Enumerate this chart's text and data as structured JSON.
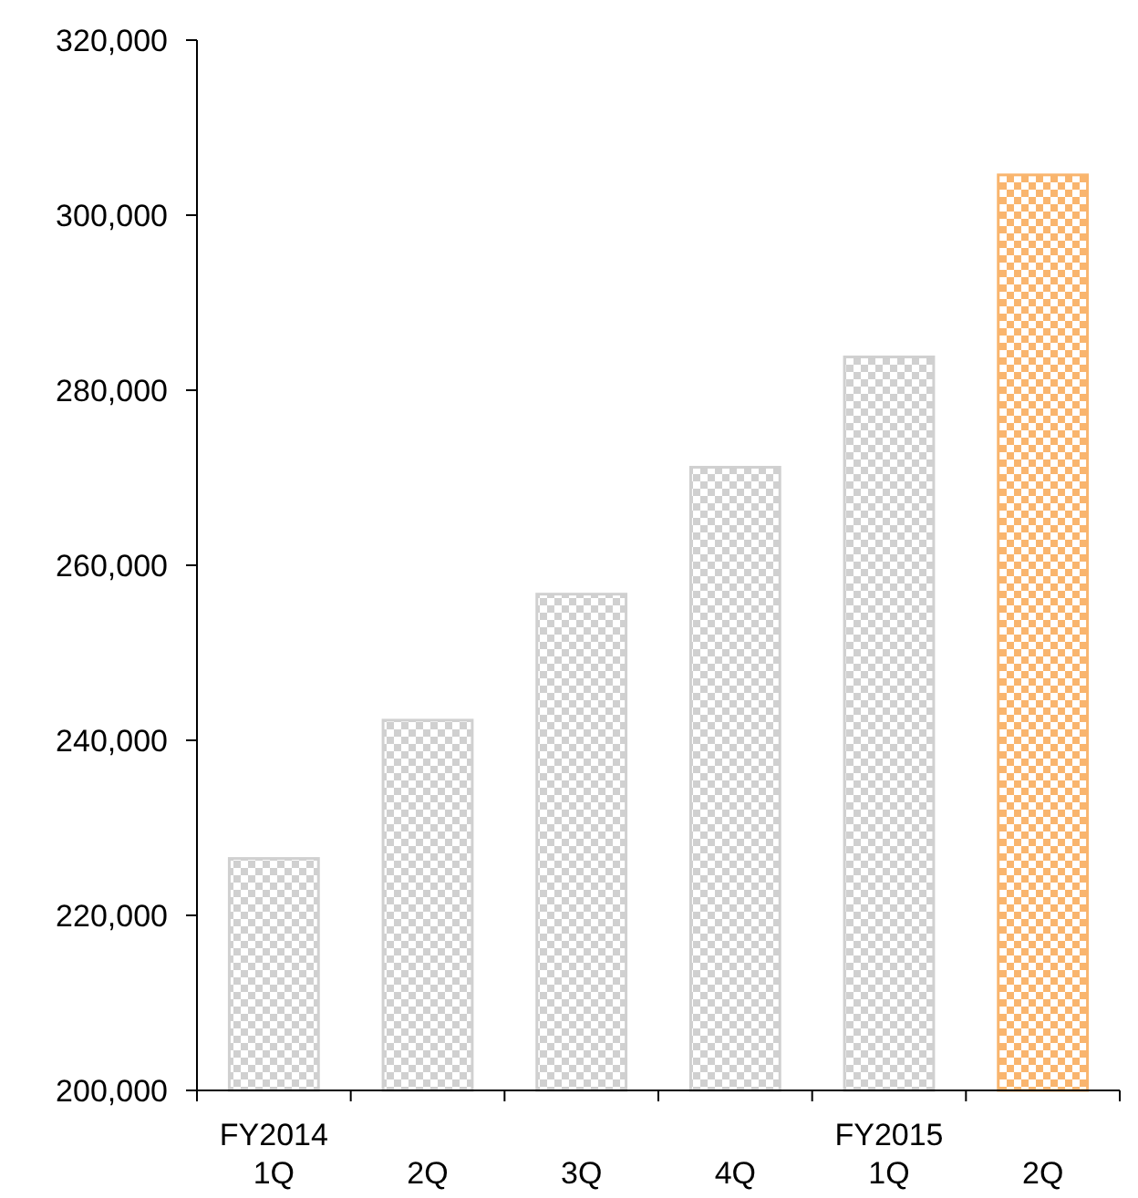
{
  "chart_data": {
    "type": "bar",
    "categories": [
      "FY2014\n1Q",
      "2Q",
      "3Q",
      "4Q",
      "FY2015\n1Q",
      "2Q"
    ],
    "values": [
      226500,
      242300,
      256700,
      271200,
      283800,
      304600
    ],
    "colors": [
      "#d0d0d0",
      "#d0d0d0",
      "#d0d0d0",
      "#d0d0d0",
      "#d0d0d0",
      "#f9b56e"
    ],
    "ylim": [
      200000,
      320000
    ],
    "yticks": [
      {
        "value": 200000,
        "label": "200,000"
      },
      {
        "value": 220000,
        "label": "220,000"
      },
      {
        "value": 240000,
        "label": "240,000"
      },
      {
        "value": 260000,
        "label": "260,000"
      },
      {
        "value": 280000,
        "label": "280,000"
      },
      {
        "value": 300000,
        "label": "300,000"
      },
      {
        "value": 320000,
        "label": "320,000"
      }
    ],
    "grid": false
  }
}
